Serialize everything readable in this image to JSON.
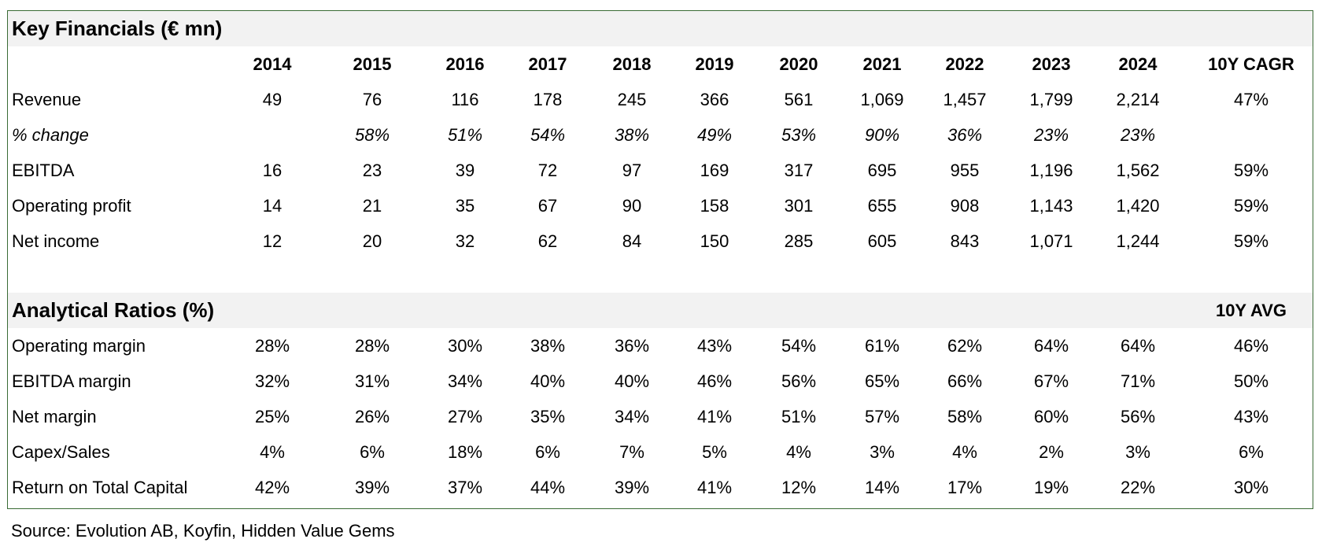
{
  "financials": {
    "title": "Key Financials (€ mn)",
    "headers": [
      "2014",
      "2015",
      "2016",
      "2017",
      "2018",
      "2019",
      "2020",
      "2021",
      "2022",
      "2023",
      "2024",
      "10Y CAGR"
    ],
    "rows": [
      {
        "label": "Revenue",
        "italic": false,
        "values": [
          "49",
          "76",
          "116",
          "178",
          "245",
          "366",
          "561",
          "1,069",
          "1,457",
          "1,799",
          "2,214",
          "47%"
        ]
      },
      {
        "label": "% change",
        "italic": true,
        "values": [
          "",
          "58%",
          "51%",
          "54%",
          "38%",
          "49%",
          "53%",
          "90%",
          "36%",
          "23%",
          "23%",
          ""
        ]
      },
      {
        "label": "EBITDA",
        "italic": false,
        "values": [
          "16",
          "23",
          "39",
          "72",
          "97",
          "169",
          "317",
          "695",
          "955",
          "1,196",
          "1,562",
          "59%"
        ]
      },
      {
        "label": "Operating profit",
        "italic": false,
        "values": [
          "14",
          "21",
          "35",
          "67",
          "90",
          "158",
          "301",
          "655",
          "908",
          "1,143",
          "1,420",
          "59%"
        ]
      },
      {
        "label": "Net income",
        "italic": false,
        "values": [
          "12",
          "20",
          "32",
          "62",
          "84",
          "150",
          "285",
          "605",
          "843",
          "1,071",
          "1,244",
          "59%"
        ]
      }
    ]
  },
  "ratios": {
    "title": "Analytical Ratios (%)",
    "avg_header": "10Y AVG",
    "rows": [
      {
        "label": "Operating margin",
        "values": [
          "28%",
          "28%",
          "30%",
          "38%",
          "36%",
          "43%",
          "54%",
          "61%",
          "62%",
          "64%",
          "64%",
          "46%"
        ]
      },
      {
        "label": "EBITDA margin",
        "values": [
          "32%",
          "31%",
          "34%",
          "40%",
          "40%",
          "46%",
          "56%",
          "65%",
          "66%",
          "67%",
          "71%",
          "50%"
        ]
      },
      {
        "label": "Net margin",
        "values": [
          "25%",
          "26%",
          "27%",
          "35%",
          "34%",
          "41%",
          "51%",
          "57%",
          "58%",
          "60%",
          "56%",
          "43%"
        ]
      },
      {
        "label": "Capex/Sales",
        "values": [
          "4%",
          "6%",
          "18%",
          "6%",
          "7%",
          "5%",
          "4%",
          "3%",
          "4%",
          "2%",
          "3%",
          "6%"
        ]
      },
      {
        "label": "Return on Total Capital",
        "values": [
          "42%",
          "39%",
          "37%",
          "44%",
          "39%",
          "41%",
          "12%",
          "14%",
          "17%",
          "19%",
          "22%",
          "30%"
        ]
      }
    ]
  },
  "source": "Source: Evolution AB, Koyfin, Hidden Value Gems",
  "colors": {
    "border": "#3a6b35",
    "band": "#f2f2f2"
  }
}
